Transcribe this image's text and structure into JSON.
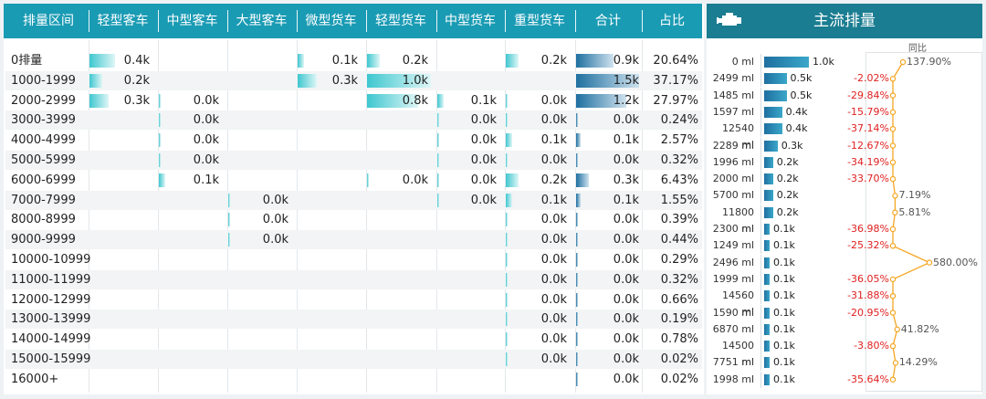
{
  "header": {
    "columns": [
      "排量区间",
      "轻型客车",
      "中型客车",
      "大型客车",
      "微型货车",
      "轻型货车",
      "中型货车",
      "重型货车",
      "合计",
      "占比"
    ]
  },
  "table": {
    "rows": [
      {
        "range": "0排量",
        "light_bus": "0.4k",
        "mid_bus": "",
        "large_bus": "",
        "mini_truck": "0.1k",
        "light_truck": "0.2k",
        "mid_truck": "",
        "heavy_truck": "0.2k",
        "total": "0.9k",
        "share": "20.64%"
      },
      {
        "range": "1000-1999",
        "light_bus": "0.2k",
        "mid_bus": "",
        "large_bus": "",
        "mini_truck": "0.3k",
        "light_truck": "1.0k",
        "mid_truck": "",
        "heavy_truck": "",
        "total": "1.5k",
        "share": "37.17%"
      },
      {
        "range": "2000-2999",
        "light_bus": "0.3k",
        "mid_bus": "0.0k",
        "large_bus": "",
        "mini_truck": "",
        "light_truck": "0.8k",
        "mid_truck": "0.1k",
        "heavy_truck": "0.0k",
        "total": "1.2k",
        "share": "27.97%"
      },
      {
        "range": "3000-3999",
        "light_bus": "",
        "mid_bus": "0.0k",
        "large_bus": "",
        "mini_truck": "",
        "light_truck": "",
        "mid_truck": "0.0k",
        "heavy_truck": "0.0k",
        "total": "0.0k",
        "share": "0.24%"
      },
      {
        "range": "4000-4999",
        "light_bus": "",
        "mid_bus": "0.0k",
        "large_bus": "",
        "mini_truck": "",
        "light_truck": "",
        "mid_truck": "0.0k",
        "heavy_truck": "0.1k",
        "total": "0.1k",
        "share": "2.57%"
      },
      {
        "range": "5000-5999",
        "light_bus": "",
        "mid_bus": "0.0k",
        "large_bus": "",
        "mini_truck": "",
        "light_truck": "",
        "mid_truck": "0.0k",
        "heavy_truck": "0.0k",
        "total": "0.0k",
        "share": "0.32%"
      },
      {
        "range": "6000-6999",
        "light_bus": "",
        "mid_bus": "0.1k",
        "large_bus": "",
        "mini_truck": "",
        "light_truck": "0.0k",
        "mid_truck": "0.0k",
        "heavy_truck": "0.2k",
        "total": "0.3k",
        "share": "6.43%"
      },
      {
        "range": "7000-7999",
        "light_bus": "",
        "mid_bus": "",
        "large_bus": "0.0k",
        "mini_truck": "",
        "light_truck": "",
        "mid_truck": "0.0k",
        "heavy_truck": "0.1k",
        "total": "0.1k",
        "share": "1.55%"
      },
      {
        "range": "8000-8999",
        "light_bus": "",
        "mid_bus": "",
        "large_bus": "0.0k",
        "mini_truck": "",
        "light_truck": "",
        "mid_truck": "",
        "heavy_truck": "0.0k",
        "total": "0.0k",
        "share": "0.39%"
      },
      {
        "range": "9000-9999",
        "light_bus": "",
        "mid_bus": "",
        "large_bus": "0.0k",
        "mini_truck": "",
        "light_truck": "",
        "mid_truck": "",
        "heavy_truck": "0.0k",
        "total": "0.0k",
        "share": "0.44%"
      },
      {
        "range": "10000-10999",
        "light_bus": "",
        "mid_bus": "",
        "large_bus": "",
        "mini_truck": "",
        "light_truck": "",
        "mid_truck": "",
        "heavy_truck": "0.0k",
        "total": "0.0k",
        "share": "0.29%"
      },
      {
        "range": "11000-11999",
        "light_bus": "",
        "mid_bus": "",
        "large_bus": "",
        "mini_truck": "",
        "light_truck": "",
        "mid_truck": "",
        "heavy_truck": "0.0k",
        "total": "0.0k",
        "share": "0.32%"
      },
      {
        "range": "12000-12999",
        "light_bus": "",
        "mid_bus": "",
        "large_bus": "",
        "mini_truck": "",
        "light_truck": "",
        "mid_truck": "",
        "heavy_truck": "0.0k",
        "total": "0.0k",
        "share": "0.66%"
      },
      {
        "range": "13000-13999",
        "light_bus": "",
        "mid_bus": "",
        "large_bus": "",
        "mini_truck": "",
        "light_truck": "",
        "mid_truck": "",
        "heavy_truck": "0.0k",
        "total": "0.0k",
        "share": "0.19%"
      },
      {
        "range": "14000-14999",
        "light_bus": "",
        "mid_bus": "",
        "large_bus": "",
        "mini_truck": "",
        "light_truck": "",
        "mid_truck": "",
        "heavy_truck": "0.0k",
        "total": "0.0k",
        "share": "0.78%"
      },
      {
        "range": "15000-15999",
        "light_bus": "",
        "mid_bus": "",
        "large_bus": "",
        "mini_truck": "",
        "light_truck": "",
        "mid_truck": "",
        "heavy_truck": "0.0k",
        "total": "0.0k",
        "share": "0.02%"
      },
      {
        "range": "16000+",
        "light_bus": "",
        "mid_bus": "",
        "large_bus": "",
        "mini_truck": "",
        "light_truck": "",
        "mid_truck": "",
        "heavy_truck": "",
        "total": "0.0k",
        "share": "0.02%"
      }
    ]
  },
  "right_panel": {
    "title": "主流排量",
    "icon": "engine-icon",
    "yoy_label": "同比"
  },
  "chart_data": [
    {
      "type": "table",
      "columns": [
        "排量区间",
        "轻型客车",
        "中型客车",
        "大型客车",
        "微型货车",
        "轻型货车",
        "中型货车",
        "重型货车",
        "合计",
        "占比"
      ],
      "bar_values_k": {
        "light_bus": [
          0.4,
          0.2,
          0.3
        ],
        "total": [
          0.9,
          1.5,
          1.2,
          0.0,
          0.1,
          0.0,
          0.3,
          0.1,
          0.0,
          0.0,
          0.0,
          0.0,
          0.0,
          0.0,
          0.0,
          0.0,
          0.0
        ]
      }
    },
    {
      "type": "bar",
      "title": "主流排量",
      "categories": [
        "0 ml",
        "2499 ml",
        "1485 ml",
        "1597 ml",
        "12540 ml",
        "2289 ml",
        "1996 ml",
        "2000 ml",
        "5700 ml",
        "11800 ml",
        "2300 ml",
        "1249 ml",
        "2496 ml",
        "1999 ml",
        "14560 ml",
        "1590 ml",
        "6870 ml",
        "14500 ml",
        "7751 ml",
        "1998 ml"
      ],
      "values": [
        1.0,
        0.5,
        0.5,
        0.4,
        0.4,
        0.3,
        0.2,
        0.2,
        0.2,
        0.2,
        0.1,
        0.1,
        0.1,
        0.1,
        0.1,
        0.1,
        0.1,
        0.1,
        0.1,
        0.1
      ],
      "value_labels": [
        "1.0k",
        "0.5k",
        "0.5k",
        "0.4k",
        "0.4k",
        "0.3k",
        "0.2k",
        "0.2k",
        "0.2k",
        "0.2k",
        "0.1k",
        "0.1k",
        "0.1k",
        "0.1k",
        "0.1k",
        "0.1k",
        "0.1k",
        "0.1k",
        "0.1k",
        "0.1k"
      ]
    },
    {
      "type": "line",
      "title": "同比",
      "categories": [
        "0 ml",
        "2499 ml",
        "1485 ml",
        "1597 ml",
        "12540 ml",
        "2289 ml",
        "1996 ml",
        "2000 ml",
        "5700 ml",
        "11800 ml",
        "2300 ml",
        "1249 ml",
        "2496 ml",
        "1999 ml",
        "14560 ml",
        "1590 ml",
        "6870 ml",
        "14500 ml",
        "7751 ml",
        "1998 ml"
      ],
      "values": [
        137.9,
        -2.02,
        -29.84,
        -15.79,
        -37.14,
        -12.67,
        -34.19,
        -33.7,
        7.19,
        5.81,
        -36.98,
        -25.32,
        580.0,
        -36.05,
        -31.88,
        -20.95,
        41.82,
        -3.8,
        14.29,
        -35.64
      ],
      "value_labels": [
        "137.90%",
        "-2.02%",
        "-29.84%",
        "-15.79%",
        "-37.14%",
        "-12.67%",
        "-34.19%",
        "-33.70%",
        "7.19%",
        "5.81%",
        "-36.98%",
        "-25.32%",
        "580.00%",
        "-36.05%",
        "-31.88%",
        "-20.95%",
        "41.82%",
        "-3.80%",
        "14.29%",
        "-35.64%"
      ],
      "color": "#f5a623"
    }
  ]
}
